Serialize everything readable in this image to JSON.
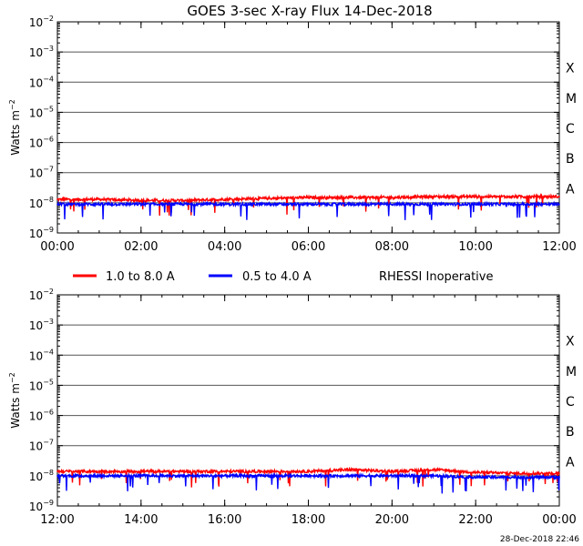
{
  "chart_data": [
    {
      "type": "line",
      "title": "GOES 3-sec X-ray Flux   14-Dec-2018",
      "ylabel_main": "Watts m",
      "ylabel_exp": "−2",
      "yscale": "log",
      "ylim": [
        1e-09,
        0.01
      ],
      "xlim": [
        "00:00",
        "12:00"
      ],
      "xticks": [
        "00:00",
        "02:00",
        "04:00",
        "06:00",
        "08:00",
        "10:00",
        "12:00"
      ],
      "yticks": [
        {
          "base": "10",
          "exp": "−2"
        },
        {
          "base": "10",
          "exp": "−3"
        },
        {
          "base": "10",
          "exp": "−4"
        },
        {
          "base": "10",
          "exp": "−5"
        },
        {
          "base": "10",
          "exp": "−6"
        },
        {
          "base": "10",
          "exp": "−7"
        },
        {
          "base": "10",
          "exp": "−8"
        },
        {
          "base": "10",
          "exp": "−9"
        }
      ],
      "flare_classes": [
        "X",
        "M",
        "C",
        "B",
        "A"
      ],
      "grid": true,
      "series": [
        {
          "name": "1.0 to 8.0 A",
          "color": "#ff0000",
          "x": [
            "00:00",
            "01:00",
            "02:00",
            "03:00",
            "04:00",
            "05:00",
            "06:00",
            "07:00",
            "08:00",
            "09:00",
            "10:00",
            "11:00",
            "12:00"
          ],
          "y": [
            1.3e-08,
            1.3e-08,
            1.2e-08,
            1.2e-08,
            1.3e-08,
            1.4e-08,
            1.5e-08,
            1.5e-08,
            1.5e-08,
            1.6e-08,
            1.6e-08,
            1.6e-08,
            1.6e-08
          ]
        },
        {
          "name": "0.5 to 4.0 A",
          "color": "#0000ff",
          "x": [
            "00:00",
            "01:00",
            "02:00",
            "03:00",
            "04:00",
            "05:00",
            "06:00",
            "07:00",
            "08:00",
            "09:00",
            "10:00",
            "11:00",
            "12:00"
          ],
          "y": [
            9e-09,
            9e-09,
            9e-09,
            9e-09,
            9e-09,
            9e-09,
            9e-09,
            9e-09,
            9e-09,
            9e-09,
            9e-09,
            9e-09,
            9e-09
          ]
        }
      ]
    },
    {
      "type": "line",
      "title": "",
      "ylabel_main": "Watts m",
      "ylabel_exp": "−2",
      "yscale": "log",
      "ylim": [
        1e-09,
        0.01
      ],
      "xlim": [
        "12:00",
        "00:00"
      ],
      "xticks": [
        "12:00",
        "14:00",
        "16:00",
        "18:00",
        "20:00",
        "22:00",
        "00:00"
      ],
      "yticks": [
        {
          "base": "10",
          "exp": "−2"
        },
        {
          "base": "10",
          "exp": "−3"
        },
        {
          "base": "10",
          "exp": "−4"
        },
        {
          "base": "10",
          "exp": "−5"
        },
        {
          "base": "10",
          "exp": "−6"
        },
        {
          "base": "10",
          "exp": "−7"
        },
        {
          "base": "10",
          "exp": "−8"
        },
        {
          "base": "10",
          "exp": "−9"
        }
      ],
      "flare_classes": [
        "X",
        "M",
        "C",
        "B",
        "A"
      ],
      "grid": true,
      "series": [
        {
          "name": "1.0 to 8.0 A",
          "color": "#ff0000",
          "x": [
            "12:00",
            "13:00",
            "14:00",
            "15:00",
            "16:00",
            "17:00",
            "18:00",
            "19:00",
            "20:00",
            "21:00",
            "22:00",
            "23:00",
            "00:00"
          ],
          "y": [
            1.4e-08,
            1.4e-08,
            1.4e-08,
            1.4e-08,
            1.4e-08,
            1.4e-08,
            1.4e-08,
            1.6e-08,
            1.4e-08,
            1.6e-08,
            1.3e-08,
            1.2e-08,
            1.2e-08
          ]
        },
        {
          "name": "0.5 to 4.0 A",
          "color": "#0000ff",
          "x": [
            "12:00",
            "13:00",
            "14:00",
            "15:00",
            "16:00",
            "17:00",
            "18:00",
            "19:00",
            "20:00",
            "21:00",
            "22:00",
            "23:00",
            "00:00"
          ],
          "y": [
            1e-08,
            1e-08,
            1e-08,
            1e-08,
            1e-08,
            1e-08,
            1e-08,
            1e-08,
            1e-08,
            1e-08,
            9e-09,
            9e-09,
            9e-09
          ]
        }
      ]
    }
  ],
  "legend": {
    "items": [
      {
        "label": "1.0 to 8.0 A",
        "color": "#ff0000"
      },
      {
        "label": "0.5 to 4.0 A",
        "color": "#0000ff"
      }
    ],
    "note": "RHESSI Inoperative"
  },
  "footer": {
    "timestamp": "28-Dec-2018 22:46"
  }
}
